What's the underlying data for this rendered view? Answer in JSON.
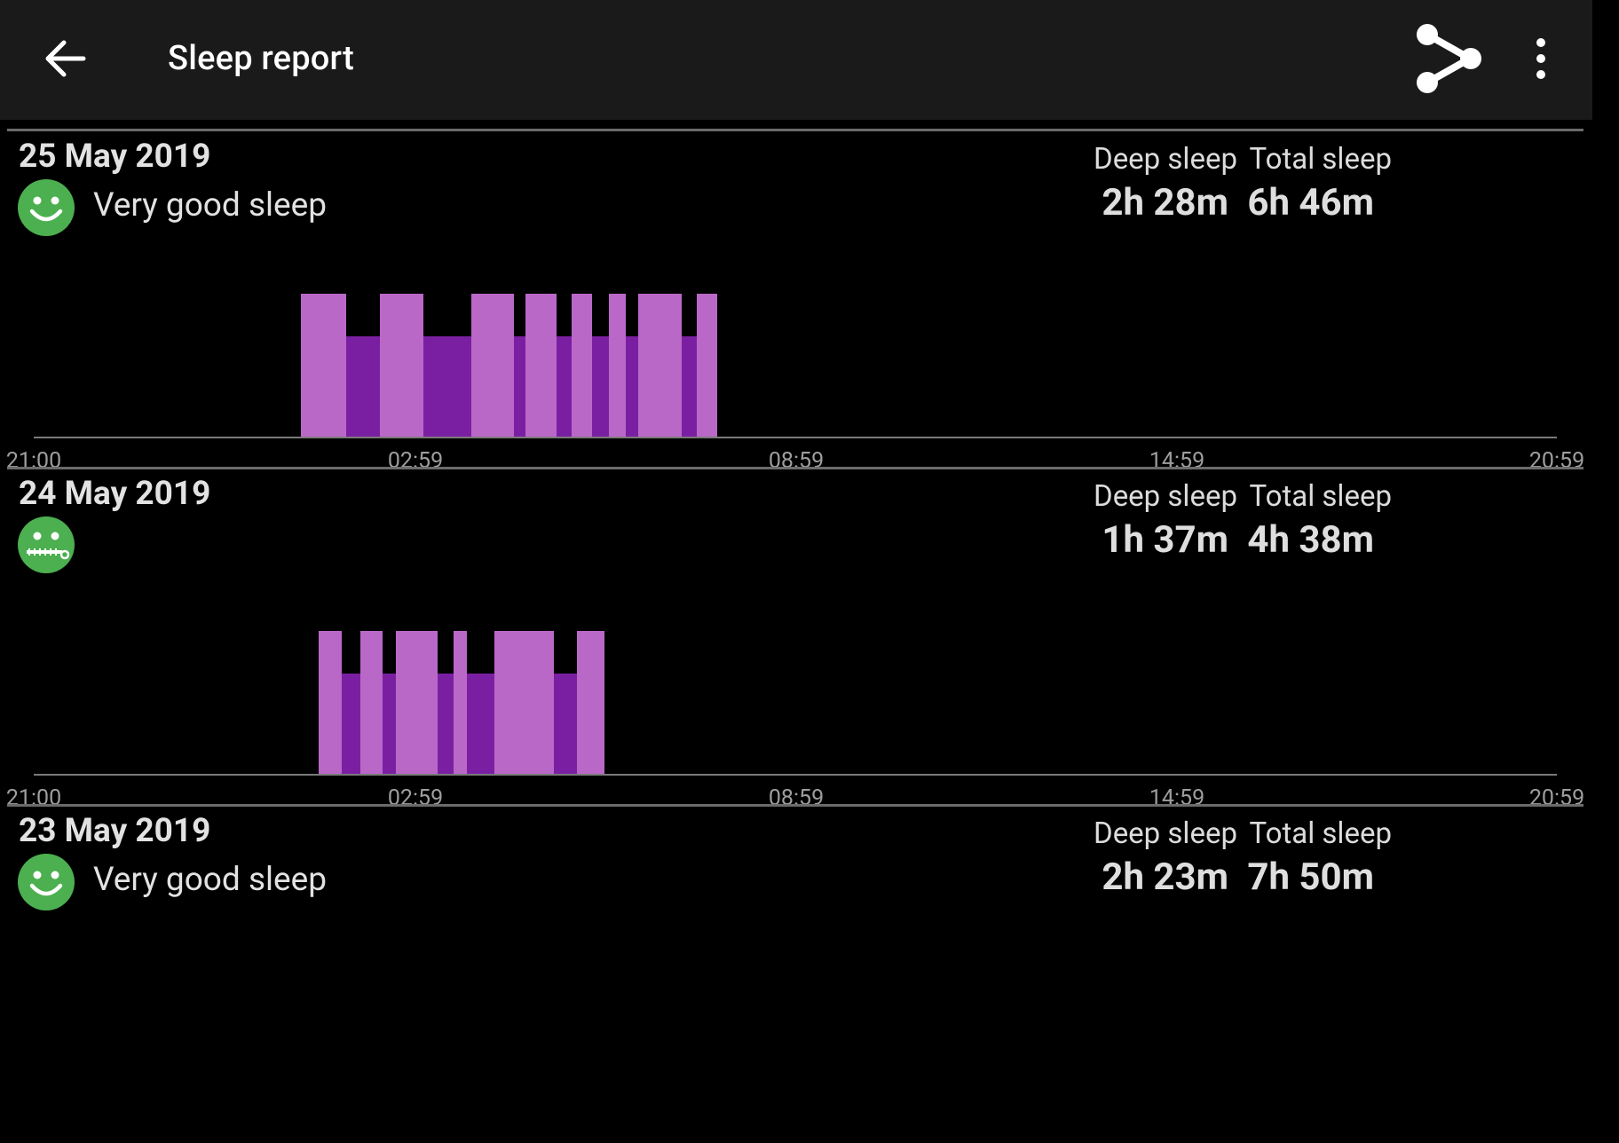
{
  "app_bar": {
    "title": "Sleep report",
    "back_icon": "arrow-back-icon",
    "share_icon": "share-icon",
    "more_icon": "more-vert-icon"
  },
  "colors": {
    "app_bar_bg": "#1a1a1a",
    "background": "#000000",
    "light_sleep": "#ba68c8",
    "deep_sleep": "#7b1fa2",
    "face": "#4caf50"
  },
  "labels": {
    "deep_sleep": "Deep sleep",
    "total_sleep": "Total sleep"
  },
  "axis_ticks": [
    "21:00",
    "02:59",
    "08:59",
    "14:59",
    "20:59"
  ],
  "days": [
    {
      "date": "25 May 2019",
      "quality": "Very good sleep",
      "face_icon": "smiley-face-icon",
      "deep_sleep": "2h 28m",
      "total_sleep": "6h 46m",
      "segments": [
        {
          "start": 4.21,
          "end": 4.92,
          "type": "light"
        },
        {
          "start": 4.92,
          "end": 5.46,
          "type": "deep"
        },
        {
          "start": 5.46,
          "end": 6.14,
          "type": "light"
        },
        {
          "start": 6.14,
          "end": 6.89,
          "type": "deep"
        },
        {
          "start": 6.89,
          "end": 7.56,
          "type": "light"
        },
        {
          "start": 7.56,
          "end": 7.75,
          "type": "deep"
        },
        {
          "start": 7.75,
          "end": 8.24,
          "type": "light"
        },
        {
          "start": 8.24,
          "end": 8.47,
          "type": "deep"
        },
        {
          "start": 8.47,
          "end": 8.8,
          "type": "light"
        },
        {
          "start": 8.8,
          "end": 9.06,
          "type": "deep"
        },
        {
          "start": 9.06,
          "end": 9.33,
          "type": "light"
        },
        {
          "start": 9.33,
          "end": 9.52,
          "type": "deep"
        },
        {
          "start": 9.52,
          "end": 10.21,
          "type": "light"
        },
        {
          "start": 10.21,
          "end": 10.45,
          "type": "deep"
        },
        {
          "start": 10.45,
          "end": 10.77,
          "type": "light"
        }
      ]
    },
    {
      "date": "24 May 2019",
      "quality": "",
      "face_icon": "zipped-mouth-face-icon",
      "deep_sleep": "1h 37m",
      "total_sleep": "4h 38m",
      "segments": [
        {
          "start": 4.49,
          "end": 4.85,
          "type": "light"
        },
        {
          "start": 4.85,
          "end": 5.15,
          "type": "deep"
        },
        {
          "start": 5.15,
          "end": 5.49,
          "type": "light"
        },
        {
          "start": 5.49,
          "end": 5.7,
          "type": "deep"
        },
        {
          "start": 5.7,
          "end": 6.37,
          "type": "light"
        },
        {
          "start": 6.37,
          "end": 6.61,
          "type": "deep"
        },
        {
          "start": 6.61,
          "end": 6.83,
          "type": "light"
        },
        {
          "start": 6.83,
          "end": 7.26,
          "type": "deep"
        },
        {
          "start": 7.26,
          "end": 8.19,
          "type": "light"
        },
        {
          "start": 8.19,
          "end": 8.56,
          "type": "deep"
        },
        {
          "start": 8.56,
          "end": 9.0,
          "type": "light"
        }
      ]
    },
    {
      "date": "23 May 2019",
      "quality": "Very good sleep",
      "face_icon": "smiley-face-icon",
      "deep_sleep": "2h 23m",
      "total_sleep": "7h 50m",
      "segments": []
    }
  ]
}
